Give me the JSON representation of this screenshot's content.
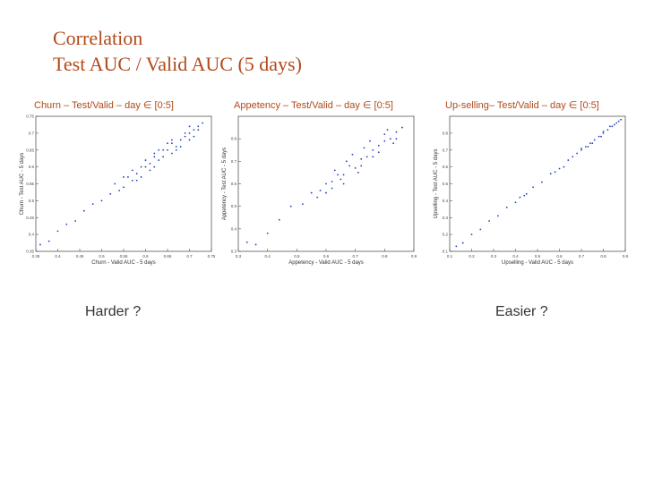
{
  "slide": {
    "title_line1": "Correlation",
    "title_line2": "Test AUC / Valid AUC (5 days)",
    "left_note": "Harder ?",
    "right_note": "Easier ?"
  },
  "panels": [
    {
      "heading": "Churn – Test/Valid – day ∈ [0:5]"
    },
    {
      "heading": "Appetency – Test/Valid – day ∈ [0:5]"
    },
    {
      "heading": "Up-selling– Test/Valid – day ∈ [0:5]"
    }
  ],
  "chart_data": [
    {
      "type": "scatter",
      "title": "Churn – Test/Valid – day ∈ [0:5]",
      "xlabel": "Churn - Valid AUC - 5 days",
      "ylabel": "Churn - Test AUC - 5 days",
      "xlim": [
        0.35,
        0.75
      ],
      "ylim": [
        0.35,
        0.75
      ],
      "xticks": [
        0.35,
        0.4,
        0.45,
        0.5,
        0.55,
        0.6,
        0.65,
        0.7,
        0.75
      ],
      "yticks": [
        0.35,
        0.4,
        0.45,
        0.5,
        0.55,
        0.6,
        0.65,
        0.7,
        0.75
      ],
      "color": "#1f3fbf",
      "x": [
        0.36,
        0.38,
        0.4,
        0.42,
        0.44,
        0.46,
        0.48,
        0.5,
        0.52,
        0.54,
        0.55,
        0.56,
        0.57,
        0.58,
        0.59,
        0.6,
        0.61,
        0.62,
        0.63,
        0.64,
        0.65,
        0.66,
        0.67,
        0.68,
        0.69,
        0.7,
        0.71,
        0.72,
        0.73,
        0.55,
        0.58,
        0.6,
        0.62,
        0.64,
        0.66,
        0.68,
        0.7,
        0.72,
        0.53,
        0.57,
        0.61,
        0.63,
        0.65,
        0.67,
        0.69,
        0.71,
        0.59,
        0.62,
        0.66,
        0.7
      ],
      "y": [
        0.37,
        0.38,
        0.41,
        0.43,
        0.44,
        0.47,
        0.49,
        0.5,
        0.52,
        0.53,
        0.54,
        0.57,
        0.56,
        0.58,
        0.6,
        0.6,
        0.61,
        0.63,
        0.62,
        0.65,
        0.65,
        0.67,
        0.66,
        0.68,
        0.69,
        0.7,
        0.71,
        0.72,
        0.73,
        0.57,
        0.56,
        0.62,
        0.6,
        0.63,
        0.68,
        0.66,
        0.72,
        0.71,
        0.55,
        0.59,
        0.59,
        0.65,
        0.67,
        0.65,
        0.7,
        0.69,
        0.57,
        0.64,
        0.64,
        0.68
      ]
    },
    {
      "type": "scatter",
      "title": "Appetency – Test/Valid – day ∈ [0:5]",
      "xlabel": "Appetency - Valid AUC - 5 days",
      "ylabel": "Appetency - Test AUC - 5 days",
      "xlim": [
        0.3,
        0.9
      ],
      "ylim": [
        0.3,
        0.9
      ],
      "xticks": [
        0.3,
        0.4,
        0.5,
        0.6,
        0.7,
        0.8,
        0.9
      ],
      "yticks": [
        0.3,
        0.4,
        0.5,
        0.6,
        0.7,
        0.8
      ],
      "color": "#1f3fbf",
      "x": [
        0.33,
        0.36,
        0.4,
        0.44,
        0.48,
        0.52,
        0.55,
        0.58,
        0.6,
        0.62,
        0.64,
        0.66,
        0.68,
        0.7,
        0.72,
        0.74,
        0.76,
        0.78,
        0.8,
        0.82,
        0.84,
        0.86,
        0.6,
        0.63,
        0.66,
        0.69,
        0.72,
        0.75,
        0.78,
        0.81,
        0.84,
        0.57,
        0.62,
        0.67,
        0.71,
        0.76,
        0.8,
        0.83,
        0.65,
        0.73
      ],
      "y": [
        0.34,
        0.33,
        0.38,
        0.44,
        0.5,
        0.51,
        0.56,
        0.57,
        0.6,
        0.61,
        0.64,
        0.64,
        0.68,
        0.67,
        0.71,
        0.72,
        0.75,
        0.77,
        0.79,
        0.8,
        0.83,
        0.85,
        0.56,
        0.66,
        0.6,
        0.73,
        0.68,
        0.79,
        0.74,
        0.84,
        0.8,
        0.54,
        0.58,
        0.7,
        0.65,
        0.72,
        0.82,
        0.78,
        0.62,
        0.76
      ]
    },
    {
      "type": "scatter",
      "title": "Up-selling– Test/Valid – day ∈ [0:5]",
      "xlabel": "Upselling - Valid AUC - 5 days",
      "ylabel": "Upselling - Test AUC - 5 days",
      "xlim": [
        0.1,
        0.9
      ],
      "ylim": [
        0.1,
        0.9
      ],
      "xticks": [
        0.1,
        0.2,
        0.3,
        0.4,
        0.5,
        0.6,
        0.7,
        0.8,
        0.9
      ],
      "yticks": [
        0.1,
        0.2,
        0.3,
        0.4,
        0.5,
        0.6,
        0.7,
        0.8
      ],
      "color": "#1f3fbf",
      "x": [
        0.13,
        0.16,
        0.2,
        0.24,
        0.28,
        0.32,
        0.36,
        0.4,
        0.42,
        0.44,
        0.48,
        0.52,
        0.56,
        0.6,
        0.64,
        0.66,
        0.68,
        0.7,
        0.72,
        0.74,
        0.76,
        0.78,
        0.8,
        0.82,
        0.84,
        0.86,
        0.88,
        0.7,
        0.75,
        0.8,
        0.85,
        0.62,
        0.58,
        0.45,
        0.73,
        0.79,
        0.83,
        0.87
      ],
      "y": [
        0.13,
        0.15,
        0.2,
        0.23,
        0.28,
        0.31,
        0.36,
        0.39,
        0.42,
        0.43,
        0.48,
        0.51,
        0.56,
        0.59,
        0.64,
        0.66,
        0.68,
        0.7,
        0.72,
        0.74,
        0.76,
        0.78,
        0.8,
        0.82,
        0.84,
        0.86,
        0.88,
        0.71,
        0.74,
        0.81,
        0.85,
        0.6,
        0.57,
        0.44,
        0.72,
        0.78,
        0.84,
        0.87
      ]
    }
  ]
}
